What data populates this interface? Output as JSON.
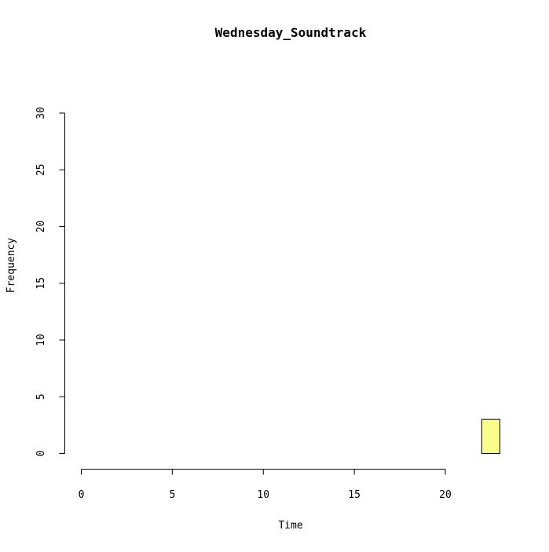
{
  "chart_data": {
    "type": "bar",
    "title": "Wednesday_Soundtrack",
    "xlabel": "Time",
    "ylabel": "Frequency",
    "bins": [
      {
        "start": 0,
        "end": 1,
        "count": 0
      },
      {
        "start": 1,
        "end": 2,
        "count": 0
      },
      {
        "start": 2,
        "end": 3,
        "count": 0
      },
      {
        "start": 3,
        "end": 4,
        "count": 0
      },
      {
        "start": 4,
        "end": 5,
        "count": 0
      },
      {
        "start": 5,
        "end": 6,
        "count": 0
      },
      {
        "start": 6,
        "end": 7,
        "count": 0
      },
      {
        "start": 7,
        "end": 8,
        "count": 0
      },
      {
        "start": 8,
        "end": 9,
        "count": 0
      },
      {
        "start": 9,
        "end": 10,
        "count": 0
      },
      {
        "start": 10,
        "end": 11,
        "count": 0
      },
      {
        "start": 11,
        "end": 12,
        "count": 0
      },
      {
        "start": 12,
        "end": 13,
        "count": 0
      },
      {
        "start": 13,
        "end": 14,
        "count": 0
      },
      {
        "start": 14,
        "end": 15,
        "count": 0
      },
      {
        "start": 15,
        "end": 16,
        "count": 0
      },
      {
        "start": 16,
        "end": 17,
        "count": 0
      },
      {
        "start": 17,
        "end": 18,
        "count": 0
      },
      {
        "start": 18,
        "end": 19,
        "count": 0
      },
      {
        "start": 19,
        "end": 20,
        "count": 0
      },
      {
        "start": 20,
        "end": 21,
        "count": 0
      },
      {
        "start": 21,
        "end": 22,
        "count": 0
      },
      {
        "start": 22,
        "end": 23,
        "count": 3
      }
    ],
    "xlim": [
      0,
      24
    ],
    "ylim": [
      0,
      30
    ],
    "x_ticks": [
      "0",
      "5",
      "10",
      "15",
      "20"
    ],
    "y_ticks": [
      "0",
      "5",
      "10",
      "15",
      "20",
      "25",
      "30"
    ],
    "bar_color": "#f7ff88",
    "bar_stroke": "#000000",
    "grid": false,
    "legend": "none"
  }
}
